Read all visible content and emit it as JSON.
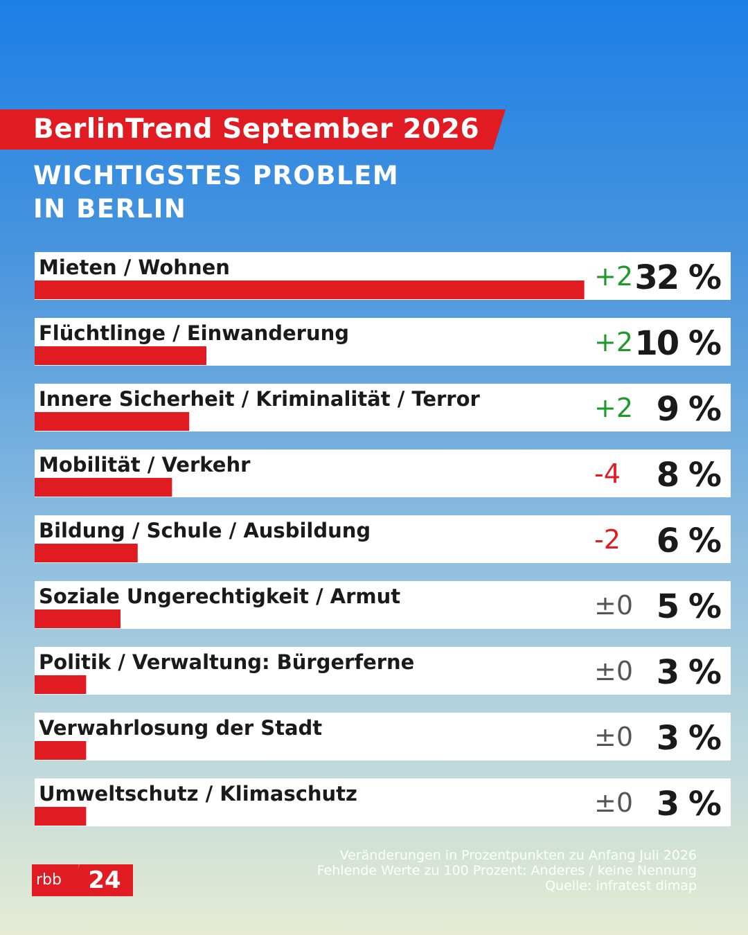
{
  "header": {
    "title": "BerlinTrend September 2026",
    "subtitle_line1": "WICHTIGSTES PROBLEM",
    "subtitle_line2": "IN BERLIN"
  },
  "colors": {
    "bar": "#e01b22",
    "positive": "#1e9a2b",
    "negative": "#e01b22",
    "neutral": "#555555"
  },
  "chart_data": {
    "type": "bar",
    "orientation": "horizontal",
    "unit": "%",
    "categories": [
      "Mieten / Wohnen",
      "Flüchtlinge / Einwanderung",
      "Innere Sicherheit / Kriminalität / Terror",
      "Mobilität / Verkehr",
      "Bildung / Schule / Ausbildung",
      "Soziale Ungerechtigkeit / Armut",
      "Politik / Verwaltung: Bürgerferne",
      "Verwahrlosung der Stadt",
      "Umweltschutz / Klimaschutz"
    ],
    "values": [
      32,
      10,
      9,
      8,
      6,
      5,
      3,
      3,
      3
    ],
    "value_labels": [
      "32 %",
      "10 %",
      "9 %",
      "8 %",
      "6 %",
      "5 %",
      "3 %",
      "3 %",
      "3 %"
    ],
    "changes": [
      "+2",
      "+2",
      "+2",
      "-4",
      "-2",
      "±0",
      "±0",
      "±0",
      "±0"
    ]
  },
  "footer": {
    "logo_left": "rbb",
    "logo_right": "24",
    "note_line1": "Veränderungen in Prozentpunkten zu Anfang Juli 2026",
    "note_line2": "Fehlende Werte zu 100 Prozent: Anderes / keine Nennung",
    "note_line3": "Quelle: infratest dimap"
  }
}
